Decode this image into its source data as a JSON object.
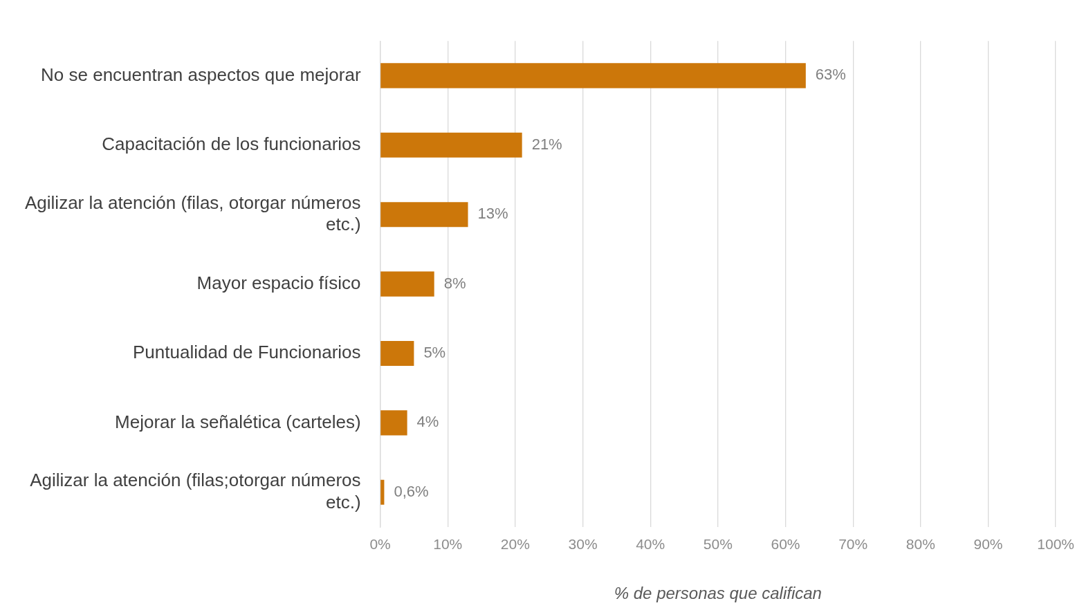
{
  "chart_data": {
    "type": "bar",
    "orientation": "horizontal",
    "xlabel": "% de personas que califican",
    "categories": [
      "No se encuentran aspectos que mejorar",
      "Capacitación de los funcionarios",
      "Agilizar la atención (filas, otorgar números etc.)",
      "Mayor espacio físico",
      "Puntualidad de Funcionarios",
      "Mejorar la señalética (carteles)",
      "Agilizar la atención (filas;otorgar números etc.)"
    ],
    "values": [
      63,
      21,
      13,
      8,
      5,
      4,
      0.6
    ],
    "value_labels": [
      "63%",
      "21%",
      "13%",
      "8%",
      "5%",
      "4%",
      "0,6%"
    ],
    "color": "#cc770a",
    "xlim": [
      0,
      100
    ],
    "xticks": [
      {
        "value": 0,
        "label": "0%"
      },
      {
        "value": 10,
        "label": "10%"
      },
      {
        "value": 20,
        "label": "20%"
      },
      {
        "value": 30,
        "label": "30%"
      },
      {
        "value": 40,
        "label": "40%"
      },
      {
        "value": 50,
        "label": "50%"
      },
      {
        "value": 60,
        "label": "60%"
      },
      {
        "value": 70,
        "label": "70%"
      },
      {
        "value": 80,
        "label": "80%"
      },
      {
        "value": 90,
        "label": "90%"
      },
      {
        "value": 100,
        "label": "100%"
      }
    ],
    "grid": "x",
    "legend": false
  }
}
